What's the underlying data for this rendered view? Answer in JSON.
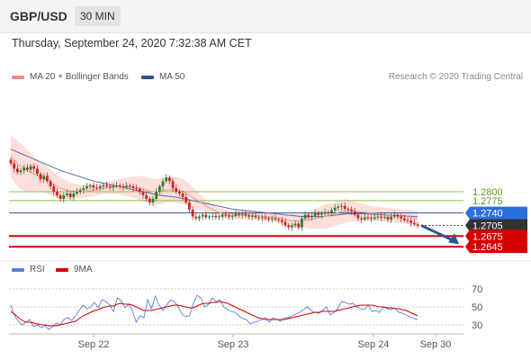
{
  "header": {
    "symbol": "GBP/USD",
    "timeframe": "30 MIN"
  },
  "datetime": "Thursday, September 24, 2020 7:32:38 AM CET",
  "credit": "Research © 2020 Trading Central",
  "legend": {
    "main": [
      {
        "label": "MA 20 + Bollinger Bands",
        "color": "#ef8a8a"
      },
      {
        "label": "MA 50",
        "color": "#34508a"
      }
    ],
    "rsi": [
      {
        "label": "RSI",
        "color": "#5a80d8"
      },
      {
        "label": "9MA",
        "color": "#d40000"
      }
    ]
  },
  "colors": {
    "bull": "#2e7d32",
    "bear": "#c62828",
    "band_fill": "#fbd3cf",
    "ma20": "#ef9a8a",
    "ma50": "#5b6fa6",
    "resistance": "#8bc34a",
    "pivot": "#2f5597",
    "support": "#d40000",
    "current": "#333333",
    "arrow": "#2f5597"
  },
  "chart_data": [
    {
      "type": "candlestick",
      "x_ticks": [
        "Sep 22",
        "Sep 23",
        "Sep 24",
        "Sep 30"
      ],
      "ylim": [
        1.2625,
        1.296
      ],
      "levels": [
        {
          "value": 1.28,
          "label": "1.2800",
          "kind": "resistance"
        },
        {
          "value": 1.2775,
          "label": "1.2775",
          "kind": "resistance"
        },
        {
          "value": 1.274,
          "label": "1.2740",
          "kind": "pivot"
        },
        {
          "value": 1.2705,
          "label": "1.2705",
          "kind": "current"
        },
        {
          "value": 1.2675,
          "label": "1.2675",
          "kind": "support"
        },
        {
          "value": 1.2645,
          "label": "1.2645",
          "kind": "support"
        }
      ],
      "close": [
        1.288,
        1.2865,
        1.2855,
        1.286,
        1.2868,
        1.2862,
        1.2872,
        1.2865,
        1.285,
        1.2835,
        1.2845,
        1.283,
        1.2815,
        1.28,
        1.279,
        1.278,
        1.279,
        1.2795,
        1.2785,
        1.2795,
        1.28,
        1.2805,
        1.281,
        1.2815,
        1.2818,
        1.2812,
        1.281,
        1.2815,
        1.2818,
        1.2815,
        1.2812,
        1.2816,
        1.2818,
        1.2815,
        1.2813,
        1.2817,
        1.2815,
        1.281,
        1.2808,
        1.28,
        1.279,
        1.278,
        1.277,
        1.278,
        1.28,
        1.2815,
        1.283,
        1.284,
        1.283,
        1.281,
        1.28,
        1.2795,
        1.2785,
        1.277,
        1.275,
        1.273,
        1.2725,
        1.273,
        1.2735,
        1.2728,
        1.273,
        1.2732,
        1.2728,
        1.273,
        1.2735,
        1.2733,
        1.273,
        1.2732,
        1.2738,
        1.2735,
        1.2738,
        1.2733,
        1.273,
        1.2732,
        1.2728,
        1.2726,
        1.2728,
        1.2725,
        1.2723,
        1.2725,
        1.2722,
        1.272,
        1.2715,
        1.2705,
        1.27,
        1.2705,
        1.271,
        1.27,
        1.2725,
        1.2735,
        1.2728,
        1.2732,
        1.274,
        1.2735,
        1.2738,
        1.2742,
        1.274,
        1.2748,
        1.2755,
        1.2758,
        1.276,
        1.2752,
        1.275,
        1.2745,
        1.2735,
        1.2725,
        1.2722,
        1.2728,
        1.2726,
        1.2724,
        1.2728,
        1.273,
        1.2727,
        1.2729,
        1.2722,
        1.273,
        1.2735,
        1.273,
        1.2725,
        1.272,
        1.2718,
        1.2712,
        1.2708,
        1.2705
      ],
      "ma20": [
        1.29,
        1.289,
        1.288,
        1.2872,
        1.2865,
        1.286,
        1.2855,
        1.285,
        1.2846,
        1.2842,
        1.2838,
        1.2833,
        1.2827,
        1.282,
        1.2815,
        1.281,
        1.2807,
        1.2805,
        1.2803,
        1.2802,
        1.2801,
        1.28,
        1.28,
        1.2801,
        1.2803,
        1.2805,
        1.2806,
        1.2808,
        1.281,
        1.2811,
        1.2812,
        1.2813,
        1.2814,
        1.2814,
        1.2814,
        1.2814,
        1.2814,
        1.2813,
        1.2812,
        1.281,
        1.2808,
        1.2805,
        1.2802,
        1.28,
        1.28,
        1.2801,
        1.2803,
        1.2805,
        1.2806,
        1.2806,
        1.2805,
        1.2803,
        1.28,
        1.2796,
        1.279,
        1.2784,
        1.2778,
        1.2772,
        1.2766,
        1.276,
        1.2755,
        1.275,
        1.2746,
        1.2742,
        1.2739,
        1.2737,
        1.2735,
        1.2734,
        1.2734,
        1.2734,
        1.2734,
        1.2734,
        1.2734,
        1.2734,
        1.2733,
        1.2732,
        1.2731,
        1.273,
        1.2729,
        1.2728,
        1.2727,
        1.2726,
        1.2724,
        1.2721,
        1.2719,
        1.2718,
        1.2718,
        1.2717,
        1.2718,
        1.272,
        1.2721,
        1.2722,
        1.2724,
        1.2726,
        1.2728,
        1.273,
        1.2732,
        1.2735,
        1.2738,
        1.2741,
        1.2744,
        1.2745,
        1.2746,
        1.2746,
        1.2745,
        1.2744,
        1.2743,
        1.2742,
        1.2741,
        1.274,
        1.2739,
        1.2738,
        1.2737,
        1.2736,
        1.2734,
        1.2733,
        1.2733,
        1.2732,
        1.2731,
        1.273,
        1.2729,
        1.2728,
        1.2726,
        1.2724
      ],
      "ma50": [
        1.292,
        1.2916,
        1.2912,
        1.2908,
        1.2904,
        1.29,
        1.2896,
        1.2892,
        1.2888,
        1.2884,
        1.288,
        1.2876,
        1.2872,
        1.2868,
        1.2864,
        1.286,
        1.2857,
        1.2854,
        1.2851,
        1.2848,
        1.2845,
        1.2842,
        1.2839,
        1.2836,
        1.2833,
        1.283,
        1.2828,
        1.2826,
        1.2824,
        1.2822,
        1.282,
        1.2818,
        1.2816,
        1.2814,
        1.2812,
        1.281,
        1.2808,
        1.2806,
        1.2804,
        1.2802,
        1.28,
        1.2798,
        1.2796,
        1.2794,
        1.2792,
        1.279,
        1.2789,
        1.2788,
        1.2787,
        1.2786,
        1.2785,
        1.2783,
        1.2781,
        1.2779,
        1.2777,
        1.2775,
        1.2773,
        1.2771,
        1.2769,
        1.2767,
        1.2765,
        1.2763,
        1.2761,
        1.2759,
        1.2757,
        1.2755,
        1.2753,
        1.2751,
        1.275,
        1.2749,
        1.2748,
        1.2747,
        1.2746,
        1.2745,
        1.2744,
        1.2743,
        1.2742,
        1.2741,
        1.274,
        1.2739,
        1.2738,
        1.2737,
        1.2736,
        1.2735,
        1.2734,
        1.2733,
        1.2732,
        1.2731,
        1.273,
        1.273,
        1.273,
        1.273,
        1.273,
        1.273,
        1.273,
        1.2731,
        1.2732,
        1.2733,
        1.2734,
        1.2735,
        1.2736,
        1.2737,
        1.2738,
        1.2738,
        1.2738,
        1.2738,
        1.2738,
        1.2738,
        1.2737,
        1.2737,
        1.2736,
        1.2736,
        1.2735,
        1.2735,
        1.2734,
        1.2734,
        1.2733,
        1.2733,
        1.2732,
        1.2732,
        1.2731,
        1.2731,
        1.273,
        1.273
      ],
      "band_width": [
        0.006,
        0.0062,
        0.0064,
        0.0064,
        0.0062,
        0.0058,
        0.0054,
        0.005,
        0.0046,
        0.0042,
        0.004,
        0.0038,
        0.0036,
        0.0034,
        0.0032,
        0.003,
        0.0028,
        0.0026,
        0.0024,
        0.0022,
        0.002,
        0.0019,
        0.0018,
        0.0017,
        0.0016,
        0.0016,
        0.0016,
        0.0016,
        0.0016,
        0.0017,
        0.0018,
        0.0019,
        0.002,
        0.0022,
        0.0024,
        0.0026,
        0.0028,
        0.003,
        0.0032,
        0.0034,
        0.0036,
        0.0036,
        0.0036,
        0.0036,
        0.0036,
        0.0036,
        0.0036,
        0.0036,
        0.0036,
        0.0036,
        0.0036,
        0.0036,
        0.0036,
        0.0034,
        0.0032,
        0.003,
        0.0028,
        0.0024,
        0.002,
        0.0016,
        0.0014,
        0.0012,
        0.0012,
        0.0012,
        0.0012,
        0.0012,
        0.0012,
        0.0012,
        0.0012,
        0.0012,
        0.0012,
        0.0012,
        0.0012,
        0.0012,
        0.0012,
        0.0012,
        0.0012,
        0.0012,
        0.0012,
        0.0012,
        0.0012,
        0.0012,
        0.0014,
        0.0016,
        0.0018,
        0.002,
        0.002,
        0.002,
        0.002,
        0.0022,
        0.0024,
        0.0026,
        0.0028,
        0.003,
        0.0032,
        0.0034,
        0.0034,
        0.0034,
        0.0034,
        0.0034,
        0.0034,
        0.0034,
        0.0032,
        0.003,
        0.0028,
        0.0026,
        0.0024,
        0.0022,
        0.002,
        0.002,
        0.002,
        0.002,
        0.002,
        0.002,
        0.002,
        0.002,
        0.002,
        0.002,
        0.002,
        0.002,
        0.002,
        0.002,
        0.002,
        0.002
      ]
    },
    {
      "type": "line",
      "ylim": [
        20,
        78
      ],
      "y_ticks": [
        70,
        50,
        30
      ],
      "series": [
        {
          "name": "RSI",
          "values": [
            52,
            40,
            34,
            30,
            33,
            36,
            28,
            30,
            27,
            29,
            25,
            28,
            32,
            30,
            36,
            38,
            35,
            40,
            46,
            52,
            48,
            50,
            55,
            49,
            58,
            56,
            52,
            45,
            60,
            57,
            49,
            53,
            46,
            33,
            40,
            38,
            58,
            48,
            62,
            52,
            46,
            52,
            58,
            56,
            50,
            42,
            39,
            40,
            54,
            63,
            60,
            50,
            53,
            60,
            56,
            58,
            50,
            47,
            45,
            44,
            40,
            37,
            36,
            31,
            33,
            34,
            36,
            38,
            33,
            38,
            36,
            34,
            38,
            38,
            40,
            42,
            44,
            47,
            50,
            46,
            44,
            43,
            46,
            50,
            41,
            44,
            48,
            56,
            55,
            53,
            54,
            50,
            48,
            47,
            52,
            45,
            46,
            44,
            50,
            48,
            47,
            49,
            44,
            43,
            41,
            39,
            37,
            36
          ]
        },
        {
          "name": "9MA",
          "values": [
            45,
            42,
            38,
            35,
            33,
            33,
            32,
            31,
            30,
            30,
            29,
            29,
            29,
            30,
            31,
            32,
            33,
            34,
            37,
            40,
            42,
            44,
            46,
            47,
            49,
            50,
            51,
            51,
            53,
            54,
            53,
            53,
            52,
            50,
            48,
            46,
            46,
            46,
            47,
            48,
            49,
            50,
            51,
            52,
            52,
            51,
            50,
            49,
            49,
            51,
            53,
            54,
            54,
            55,
            55,
            56,
            55,
            54,
            52,
            50,
            48,
            46,
            44,
            42,
            40,
            38,
            37,
            36,
            36,
            36,
            36,
            36,
            36,
            37,
            38,
            39,
            40,
            41,
            42,
            43,
            44,
            44,
            45,
            45,
            45,
            45,
            46,
            47,
            48,
            49,
            50,
            51,
            52,
            52,
            52,
            52,
            51,
            50,
            50,
            49,
            49,
            48,
            48,
            47,
            46,
            44,
            42,
            40
          ]
        }
      ]
    }
  ]
}
